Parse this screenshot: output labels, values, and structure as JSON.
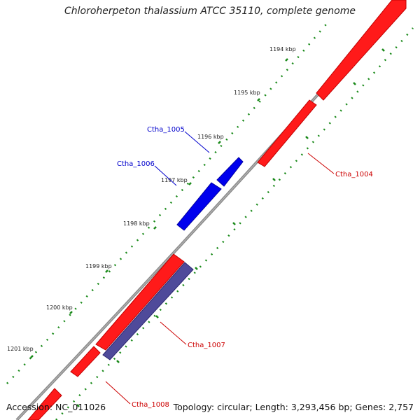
{
  "title": "Chloroherpeton thalassium ATCC 35110, complete genome",
  "footer": {
    "accession": "Accession: NC_011026",
    "summary": "Topology: circular; Length: 3,293,456 bp; Genes: 2,757"
  },
  "colors": {
    "forward_gene": "#ff0000",
    "reverse_gene": "#ff0000",
    "highlight_gene": "#0000ff",
    "other_gene": "#4b3f8f",
    "backbone": "#888888",
    "ticks": "#1a8a1a",
    "label_blue": "#0000cc",
    "label_red": "#cc0000"
  },
  "ticks": [
    "1194 kbp",
    "1195 kbp",
    "1196 kbp",
    "1197 kbp",
    "1198 kbp",
    "1199 kbp",
    "1200 kbp",
    "1201 kbp"
  ],
  "gene_labels": [
    "Ctha_1005",
    "Ctha_1006",
    "Ctha_1004",
    "Ctha_1007",
    "Ctha_1008"
  ]
}
